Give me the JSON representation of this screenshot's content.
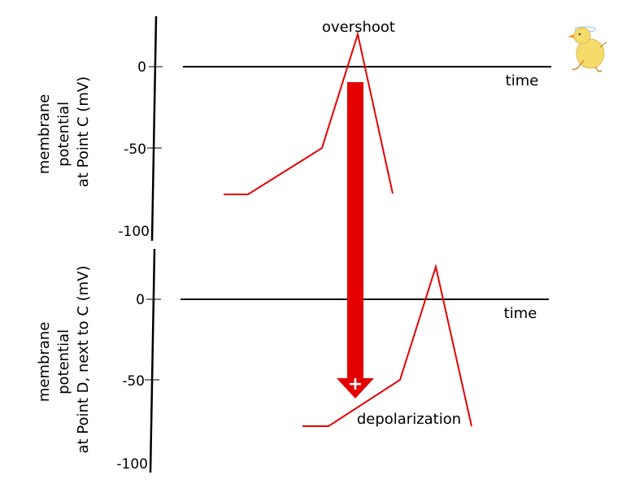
{
  "colors": {
    "trace": "#e50000",
    "axis": "#000000",
    "arrow": "#e50000"
  },
  "panel_top": {
    "ylabel_lines": [
      "membrane",
      "potential",
      "at Point C (mV)"
    ],
    "ticks": [
      "0",
      "-50",
      "-100"
    ],
    "xlabel": "time",
    "annotation": "overshoot"
  },
  "panel_bottom": {
    "ylabel_lines": [
      "membrane",
      "potential",
      "at Point D, next to C (mV)"
    ],
    "ticks": [
      "0",
      "-50",
      "-100"
    ],
    "xlabel": "time",
    "annotation": "depolarization"
  },
  "arrow_symbol": "+",
  "mascot": {
    "icon": "duck-icon"
  }
}
